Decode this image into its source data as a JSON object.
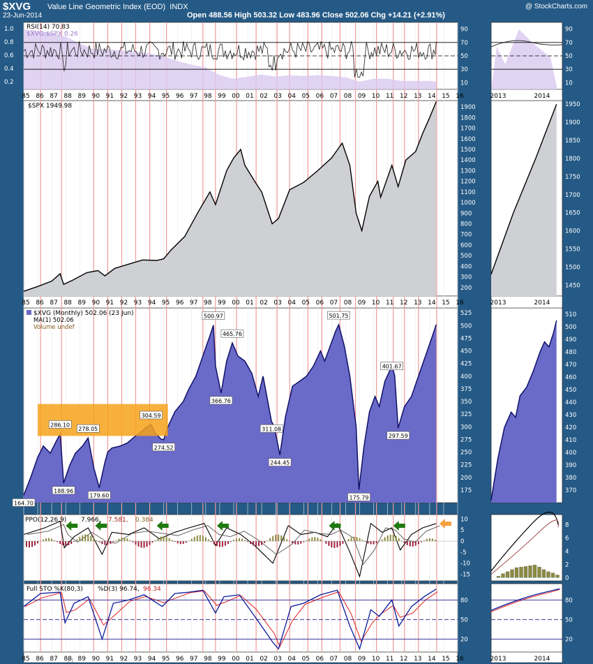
{
  "header": {
    "symbol": "$XVG",
    "name": "Value Line Geometric Index (EOD)",
    "exchange": "INDX",
    "date": "23-Jun-2014",
    "ohlc": "Open 488.56  High 503.32  Low 483.96  Close 502.06  Chg +14.21 (+2.91%)",
    "watermark": "@ StockCharts.com"
  },
  "colors": {
    "frame": "#255a86",
    "panel": "#ffffff",
    "vline": "#f09a9a",
    "price_fill": "#6a6ac8",
    "price_line": "#10106a",
    "spx_fill": "#cfd0d4",
    "rsi_ratio_fill": "#d9c9f0",
    "ppo_hist_pos": "#8c8a40",
    "ppo_hist_neg": "#9e1e3e",
    "highlight_box": "#f7a21b",
    "arrow_green": "#1f7a10",
    "arrow_orange": "#f7a040",
    "sto_k": "#0a1a9a",
    "sto_d": "#e02020"
  },
  "x_axis_labels": [
    "85",
    "86",
    "87",
    "88",
    "89",
    "90",
    "91",
    "92",
    "93",
    "94",
    "95",
    "96",
    "97",
    "98",
    "99",
    "00",
    "01",
    "02",
    "03",
    "04",
    "05",
    "06",
    "07",
    "08",
    "09",
    "10",
    "11",
    "12",
    "13",
    "14",
    "15",
    "16"
  ],
  "x_axis_labels_right": [
    "2013",
    "2014"
  ],
  "red_vlines_years": [
    1986.2,
    1987.7,
    1990.0,
    1991.0,
    1992.0,
    1993.0,
    1994.0,
    1995.2,
    1997.8,
    1998.7,
    2000.2,
    2001.6,
    2003.1,
    2004.0,
    2005.3,
    2006.3,
    2007.6,
    2008.7,
    2010.2,
    2011.4,
    2012.2,
    2013.2,
    2014.5
  ],
  "rsi_panel": {
    "legend_rsi": "RSI(14) 70.83",
    "legend_ratio": "$XVG:$SPX 0.26",
    "left_ticks": [
      "1.0",
      "0.8",
      "0.6",
      "0.4",
      "0.2"
    ],
    "right_ticks": [
      "90",
      "70",
      "50",
      "30",
      "10"
    ]
  },
  "spx_panel": {
    "legend": "$SPX 1949.98",
    "right_ticks": [
      "1900",
      "1800",
      "1700",
      "1600",
      "1500",
      "1400",
      "1300",
      "1200",
      "1100",
      "1000",
      "900",
      "800",
      "700",
      "600",
      "500",
      "400",
      "300",
      "200"
    ],
    "right_ticks_zoom": [
      "1950",
      "1900",
      "1850",
      "1800",
      "1750",
      "1700",
      "1650",
      "1600",
      "1550",
      "1500",
      "1450"
    ]
  },
  "price_panel": {
    "legend_main": "$XVG (Monthly) 502.06 (23 Jun)",
    "legend_ma": "MA(1) 502.06",
    "legend_volume": "Volume undef",
    "right_ticks": [
      "525",
      "500",
      "475",
      "450",
      "425",
      "400",
      "375",
      "350",
      "325",
      "300",
      "275",
      "250",
      "225",
      "200",
      "175"
    ],
    "right_ticks_zoom": [
      "510",
      "500",
      "490",
      "480",
      "470",
      "460",
      "450",
      "440",
      "430",
      "420",
      "410",
      "400",
      "390",
      "380",
      "370"
    ],
    "annotations": [
      "164.70",
      "286.10",
      "278.05",
      "304.59",
      "274.52",
      "188.96",
      "179.60",
      "500.97",
      "465.76",
      "366.76",
      "311.08",
      "244.45",
      "501.75",
      "401.67",
      "297.59",
      "175.79"
    ]
  },
  "ppo_panel": {
    "legend_label": "PPO(12,26,9)",
    "legend_ppo": "7.966,",
    "legend_signal": "7.581,",
    "legend_hist": "0.384",
    "right_ticks": [
      "10",
      "5",
      "0",
      "-5",
      "-10",
      "-15"
    ],
    "right_ticks_zoom": [
      "8",
      "6",
      "4",
      "2",
      "0"
    ]
  },
  "sto_panel": {
    "legend_label": "Full STO %K(80,3)",
    "legend_k": "%D(3) 96.74,",
    "legend_d": "96.34",
    "right_ticks": [
      "80",
      "50",
      "20"
    ],
    "bottom_marker": "21"
  },
  "chart_data": {
    "type": "area",
    "title": "$XVG Value Line Geometric Index (EOD), 23-Jun-2014",
    "x_range": [
      1985,
      2016
    ],
    "xvg": {
      "name": "$XVG (Monthly)",
      "ylim": [
        150,
        535
      ],
      "x": [
        1985.0,
        1985.5,
        1986.0,
        1986.4,
        1986.9,
        1987.3,
        1987.6,
        1987.75,
        1987.85,
        1988.3,
        1988.7,
        1989.2,
        1989.6,
        1990.0,
        1990.4,
        1990.8,
        1991.0,
        1991.3,
        1991.9,
        1992.4,
        1992.9,
        1993.3,
        1993.8,
        1994.1,
        1994.4,
        1994.8,
        1995.0,
        1995.3,
        1995.8,
        1996.4,
        1996.8,
        1997.3,
        1997.8,
        1998.3,
        1998.55,
        1998.7,
        1999.1,
        1999.5,
        1999.9,
        2000.3,
        2000.8,
        2001.3,
        2001.75,
        2002.1,
        2002.7,
        2002.9,
        2003.3,
        2003.7,
        2004.2,
        2004.7,
        2005.2,
        2005.7,
        2006.2,
        2006.5,
        2006.9,
        2007.3,
        2007.5,
        2007.9,
        2008.3,
        2008.75,
        2008.95,
        2009.3,
        2009.7,
        2010.1,
        2010.4,
        2010.8,
        2011.3,
        2011.5,
        2011.75,
        2012.2,
        2012.7,
        2013.2,
        2013.7,
        2014.2,
        2014.47
      ],
      "y": [
        164.7,
        200,
        240,
        262,
        248,
        270,
        286.1,
        230,
        188.96,
        225,
        248,
        262,
        278.05,
        220,
        179.6,
        230,
        250,
        258,
        262,
        268,
        280,
        288,
        300,
        304.59,
        288,
        276,
        274.52,
        300,
        330,
        350,
        375,
        400,
        440,
        480,
        500.97,
        420,
        366.76,
        430,
        465.76,
        440,
        430,
        405,
        360,
        400,
        311.08,
        300,
        244.45,
        320,
        380,
        390,
        400,
        420,
        450,
        430,
        460,
        490,
        501.75,
        460,
        400,
        300,
        175.79,
        260,
        330,
        360,
        340,
        390,
        420,
        401.67,
        297.59,
        340,
        360,
        400,
        440,
        480,
        502.06
      ]
    },
    "spx": {
      "name": "$SPX",
      "ylim": [
        120,
        1960
      ],
      "x": [
        1985.0,
        1986.0,
        1987.0,
        1987.6,
        1987.85,
        1988.5,
        1989.5,
        1990.3,
        1990.8,
        1991.5,
        1992.5,
        1993.5,
        1994.5,
        1995.0,
        1995.5,
        1996.5,
        1997.5,
        1998.3,
        1998.7,
        1999.5,
        2000.0,
        2000.5,
        2000.8,
        2001.5,
        2002.0,
        2002.75,
        2003.2,
        2004.0,
        2005.0,
        2006.0,
        2007.0,
        2007.75,
        2008.3,
        2008.75,
        2009.15,
        2009.7,
        2010.3,
        2010.5,
        2011.3,
        2011.75,
        2012.3,
        2013.0,
        2013.5,
        2014.0,
        2014.47
      ],
      "y": [
        165,
        210,
        260,
        330,
        230,
        270,
        340,
        360,
        310,
        380,
        420,
        460,
        455,
        470,
        550,
        680,
        920,
        1100,
        980,
        1300,
        1420,
        1500,
        1350,
        1200,
        1100,
        800,
        850,
        1120,
        1190,
        1300,
        1420,
        1560,
        1350,
        900,
        735,
        1060,
        1200,
        1050,
        1350,
        1150,
        1400,
        1480,
        1650,
        1800,
        1950
      ]
    },
    "rsi14": {
      "name": "RSI(14)",
      "last": 70.83,
      "ylim": [
        0,
        100
      ],
      "levels": [
        30,
        50,
        70
      ]
    },
    "xvg_spx_ratio": {
      "name": "$XVG:$SPX",
      "last": 0.26,
      "ylim": [
        0.15,
        1.1
      ],
      "x": [
        1985.0,
        1986.0,
        1987.0,
        1988.0,
        1989.0,
        1990.0,
        1991.0,
        1992.0,
        1993.0,
        1994.0,
        1995.0,
        1996.0,
        1997.0,
        1998.0,
        1999.0,
        2000.0,
        2001.0,
        2002.0,
        2003.0,
        2004.0,
        2005.0,
        2006.0,
        2007.0,
        2008.0,
        2009.0,
        2010.0,
        2011.0,
        2012.0,
        2013.0,
        2014.0,
        2014.47
      ],
      "y": [
        1.0,
        0.98,
        0.95,
        0.9,
        0.8,
        0.72,
        0.72,
        0.7,
        0.68,
        0.66,
        0.62,
        0.55,
        0.5,
        0.46,
        0.35,
        0.3,
        0.33,
        0.36,
        0.33,
        0.35,
        0.34,
        0.35,
        0.34,
        0.32,
        0.26,
        0.3,
        0.3,
        0.27,
        0.27,
        0.27,
        0.26
      ]
    },
    "ppo": {
      "name": "PPO(12,26,9)",
      "last_ppo": 7.966,
      "last_signal": 7.581,
      "last_histogram": 0.384,
      "ylim": [
        -18,
        12
      ],
      "levels": [
        0
      ]
    },
    "full_sto": {
      "name": "Full STO %K(80,3) %D(3)",
      "last_k": 96.74,
      "last_d": 96.34,
      "ylim": [
        0,
        105
      ],
      "levels": [
        20,
        50,
        80
      ]
    }
  }
}
